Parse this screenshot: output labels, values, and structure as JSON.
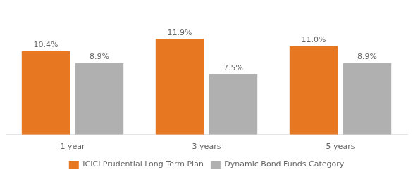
{
  "chart_data": {
    "type": "bar",
    "categories": [
      "1 year",
      "3 years",
      "5 years"
    ],
    "series": [
      {
        "name": "ICICI Prudential Long Term Plan",
        "color": "#E87722",
        "values": [
          10.4,
          11.9,
          11.0
        ],
        "value_labels": [
          "10.4%",
          "11.9%",
          "11.0%"
        ]
      },
      {
        "name": "Dynamic Bond Funds Category",
        "color": "#B0B0B0",
        "values": [
          8.9,
          7.5,
          8.9
        ],
        "value_labels": [
          "8.9%",
          "7.5%",
          "8.9%"
        ]
      }
    ],
    "ylim": [
      0,
      15.5
    ],
    "grid": false,
    "legend": "bottom",
    "data_labels": true,
    "tick_labels": "x"
  }
}
